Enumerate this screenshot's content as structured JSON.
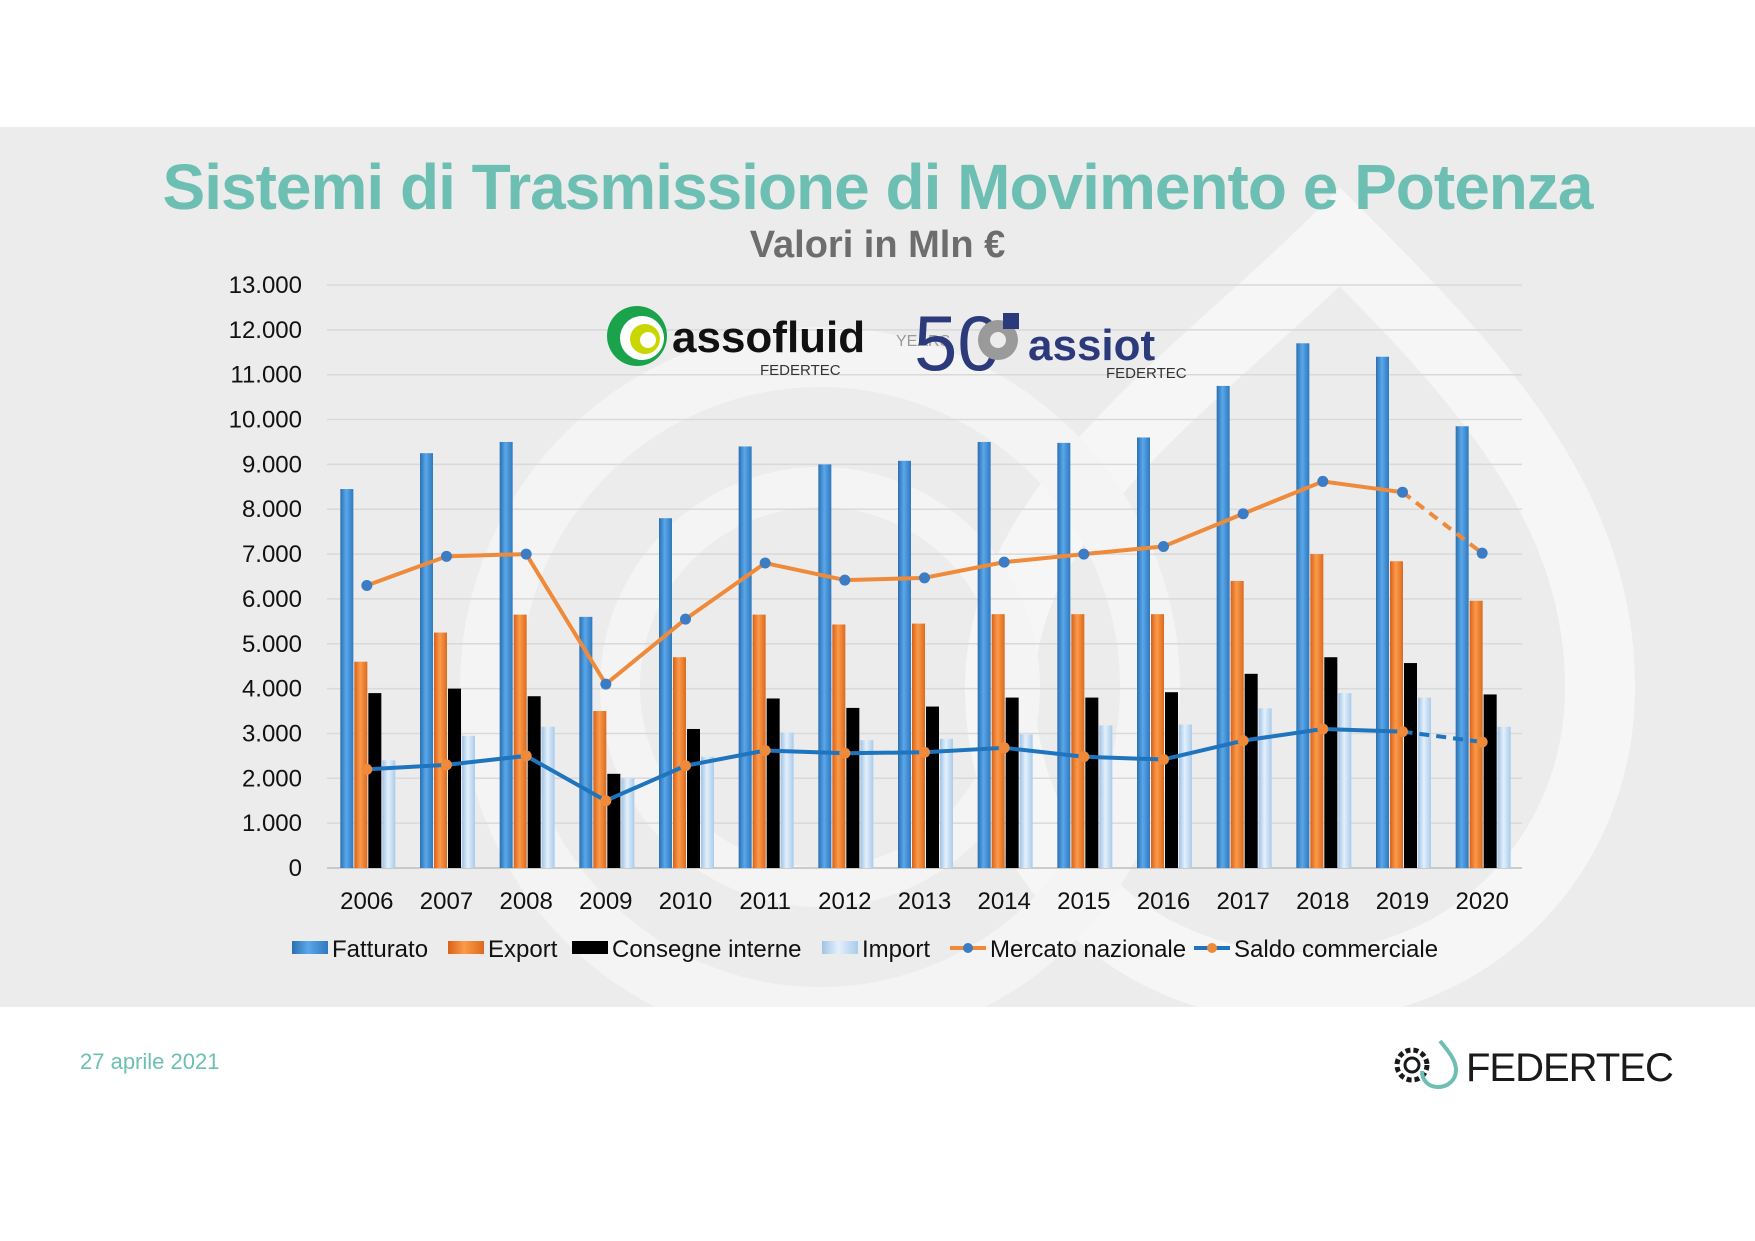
{
  "slide": {
    "title": "Sistemi di Trasmissione di Movimento e Potenza",
    "subtitle": "Valori in Mln €",
    "date": "27 aprile 2021"
  },
  "logos": {
    "assofluid": {
      "name": "assofluid",
      "sub": "FEDERTEC"
    },
    "assiot": {
      "badge": "YEARS",
      "number": "50",
      "name": "assiot",
      "sub": "FEDERTEC"
    },
    "federtec": {
      "name": "FEDERTEC"
    }
  },
  "chart_data": {
    "type": "bar",
    "categories": [
      "2006",
      "2007",
      "2008",
      "2009",
      "2010",
      "2011",
      "2012",
      "2013",
      "2014",
      "2015",
      "2016",
      "2017",
      "2018",
      "2019",
      "2020"
    ],
    "ylim": [
      0,
      13000
    ],
    "yticks": [
      0,
      1000,
      2000,
      3000,
      4000,
      5000,
      6000,
      7000,
      8000,
      9000,
      10000,
      11000,
      12000,
      13000
    ],
    "ytick_labels": [
      "0",
      "1.000",
      "2.000",
      "3.000",
      "4.000",
      "5.000",
      "6.000",
      "7.000",
      "8.000",
      "9.000",
      "10.000",
      "11.000",
      "12.000",
      "13.000"
    ],
    "grid": true,
    "legend_position": "bottom",
    "series": [
      {
        "name": "Fatturato",
        "kind": "bar",
        "color": "#3f8fd6",
        "values": [
          8450,
          9250,
          9500,
          5600,
          7800,
          9400,
          9000,
          9080,
          9500,
          9480,
          9600,
          10750,
          11700,
          11400,
          9850
        ]
      },
      {
        "name": "Export",
        "kind": "bar",
        "color": "#f07d28",
        "values": [
          4600,
          5250,
          5650,
          3500,
          4700,
          5650,
          5430,
          5450,
          5660,
          5660,
          5660,
          6400,
          7000,
          6840,
          5960
        ]
      },
      {
        "name": "Consegne interne",
        "kind": "bar",
        "color": "#9a9a9a",
        "values": [
          3900,
          4000,
          3830,
          2100,
          3100,
          3780,
          3570,
          3600,
          3800,
          3800,
          3920,
          4330,
          4700,
          4570,
          3870
        ]
      },
      {
        "name": "Import",
        "kind": "bar",
        "color": "#bcd8f0",
        "values": [
          2400,
          2950,
          3150,
          2000,
          2480,
          3020,
          2850,
          2880,
          2980,
          3180,
          3200,
          3560,
          3900,
          3800,
          3150
        ]
      },
      {
        "name": "Mercato nazionale",
        "kind": "line",
        "color": "#ef8a3a",
        "marker": "#3b7cc4",
        "values": [
          6300,
          6950,
          7000,
          4100,
          5550,
          6800,
          6420,
          6470,
          6820,
          7000,
          7170,
          7900,
          8620,
          8380,
          7020
        ],
        "dashed_last_segment": true
      },
      {
        "name": "Saldo commerciale",
        "kind": "line",
        "color": "#1f74be",
        "marker": "#ef8a3a",
        "values": [
          2200,
          2300,
          2500,
          1500,
          2280,
          2620,
          2560,
          2580,
          2680,
          2480,
          2420,
          2840,
          3100,
          3040,
          2810
        ],
        "dashed_last_segment": true
      }
    ]
  }
}
